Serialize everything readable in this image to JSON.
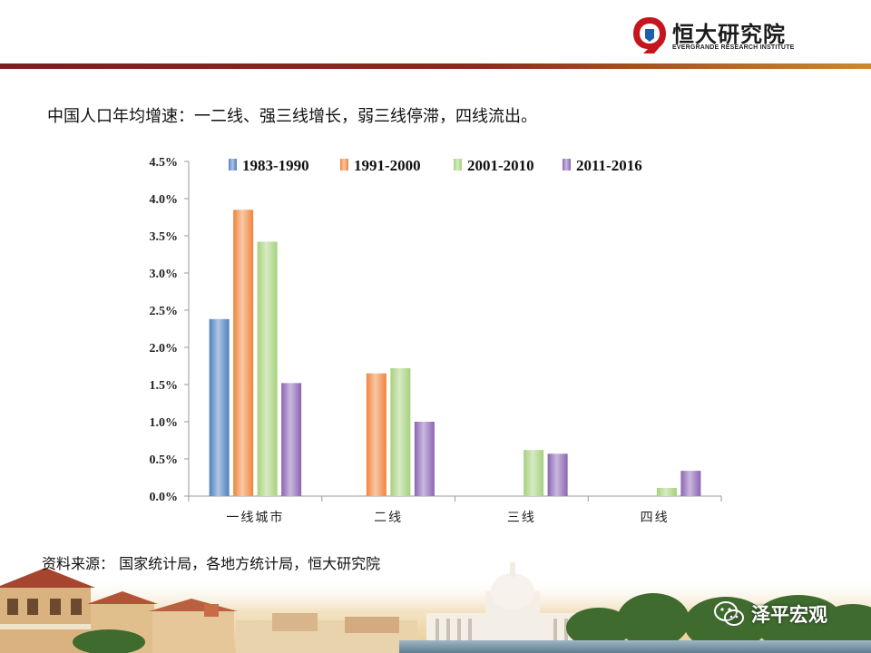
{
  "header": {
    "logo_cn": "恒大研究院",
    "logo_en": "EVERGRANDE RESEARCH INSTITUTE"
  },
  "slide": {
    "title": "中国人口年均增速：一二线、强三线增长，弱三线停滞，四线流出。",
    "source": "资料来源：  国家统计局，各地方统计局，恒大研究院"
  },
  "watermark": {
    "text": "泽平宏观",
    "icon": "wechat-icon"
  },
  "colors": {
    "header_rule": "#7a1f1f",
    "accent_gold": "#c98a2e",
    "logo_red": "#c4161c",
    "logo_blue": "#1f5fa8"
  },
  "chart_data": {
    "type": "bar",
    "title": "",
    "xlabel": "",
    "ylabel": "",
    "categories": [
      "一线城市",
      "二线",
      "三线",
      "四线"
    ],
    "ylim": [
      0,
      0.045
    ],
    "yticks": [
      "0.0%",
      "0.5%",
      "1.0%",
      "1.5%",
      "2.0%",
      "2.5%",
      "3.0%",
      "3.5%",
      "4.0%",
      "4.5%"
    ],
    "legend_position": "top",
    "grid": false,
    "series": [
      {
        "name": "1983-1990",
        "color": "#4f7fc0",
        "values": [
          0.0238,
          0,
          0,
          0
        ]
      },
      {
        "name": "1991-2000",
        "color": "#f0843c",
        "values": [
          0.0385,
          0.0165,
          0,
          0
        ]
      },
      {
        "name": "2001-2010",
        "color": "#a6d17c",
        "values": [
          0.0342,
          0.0172,
          0.0062,
          0.0011
        ]
      },
      {
        "name": "2011-2016",
        "color": "#8a64b4",
        "values": [
          0.0152,
          0.01,
          0.0057,
          0.0034
        ]
      }
    ]
  }
}
